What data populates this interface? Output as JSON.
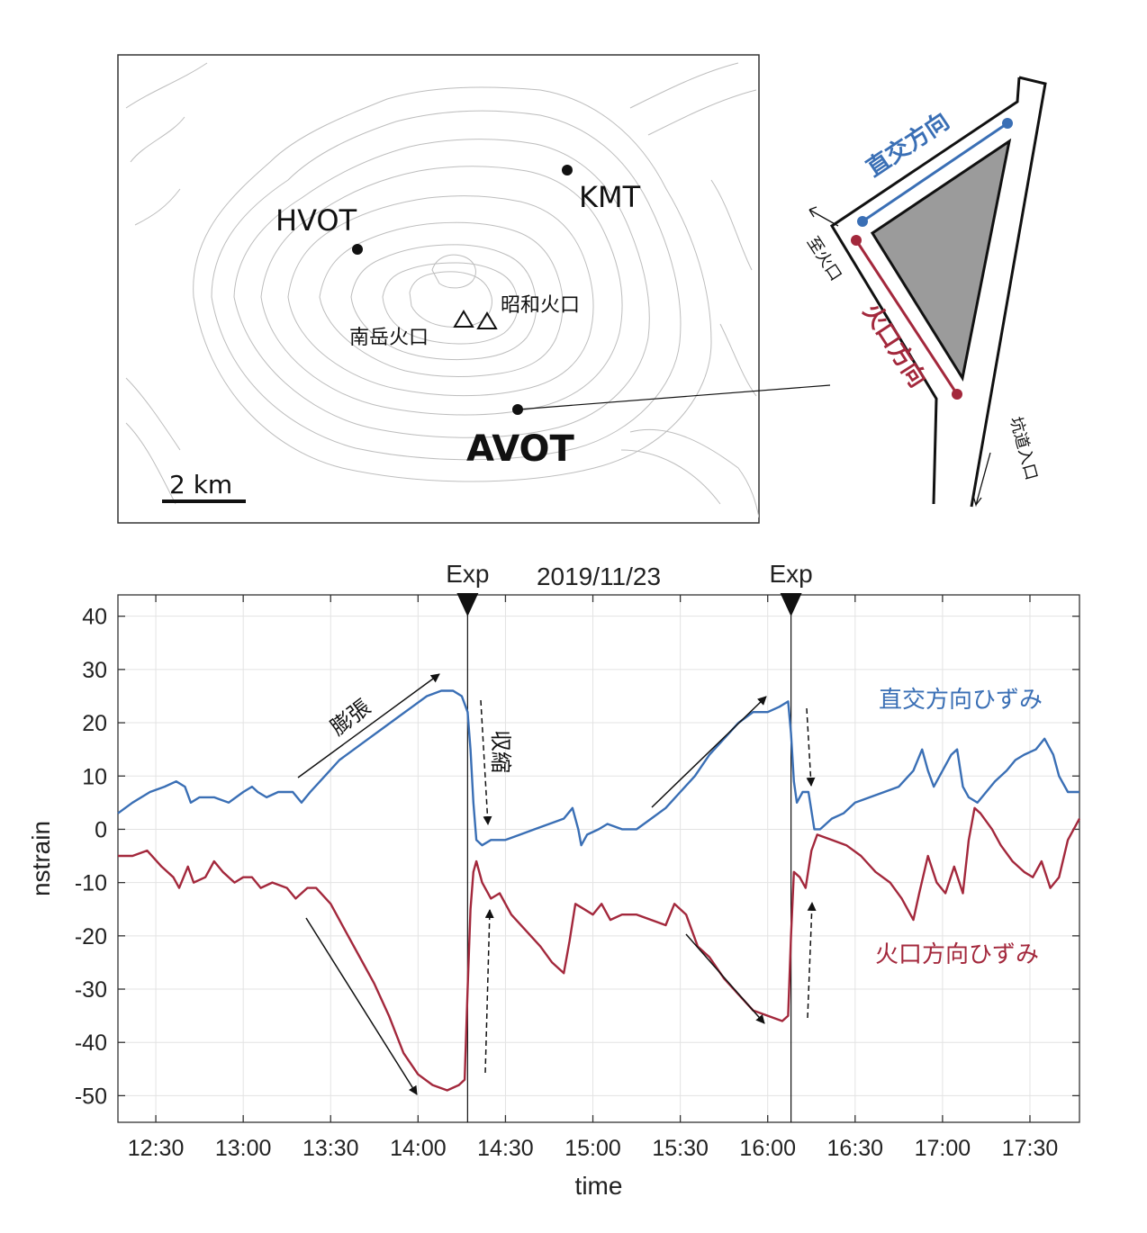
{
  "map": {
    "stations": [
      {
        "name": "HVOT",
        "label": "HVOT",
        "bold": false
      },
      {
        "name": "KMT",
        "label": "KMT",
        "bold": false
      },
      {
        "name": "AVOT",
        "label": "AVOT",
        "bold": true
      }
    ],
    "craters": [
      {
        "name": "minamidake",
        "label": "南岳火口"
      },
      {
        "name": "showa",
        "label": "昭和火口"
      }
    ],
    "scale_label": "2 km"
  },
  "inset": {
    "perpendicular_label": "直交方向",
    "crater_dir_label": "火口方向",
    "to_crater_label": "至火口",
    "tunnel_entrance_label": "坑道入口",
    "colors": {
      "blue": "#3a6fb5",
      "red": "#a3283c",
      "fill": "#9b9b9b"
    }
  },
  "chart_data": {
    "type": "line",
    "title": "2019/11/23",
    "xlabel": "time",
    "ylabel": "nstrain",
    "x_ticks": [
      "12:30",
      "13:00",
      "13:30",
      "14:00",
      "14:30",
      "15:00",
      "15:30",
      "16:00",
      "16:30",
      "17:00",
      "17:30"
    ],
    "y_ticks": [
      40,
      30,
      20,
      10,
      0,
      -10,
      -20,
      -30,
      -40,
      -50
    ],
    "xlim": [
      "12:17",
      "17:47"
    ],
    "ylim": [
      -55,
      44
    ],
    "grid": true,
    "events": [
      {
        "label": "Exp",
        "time": "14:17"
      },
      {
        "label": "Exp",
        "time": "16:08"
      }
    ],
    "annotations": [
      {
        "text": "膨張"
      },
      {
        "text": "収縮"
      }
    ],
    "series": [
      {
        "name": "直交方向ひずみ",
        "color": "#3a6fb5",
        "points": [
          [
            "12:17",
            3
          ],
          [
            "12:22",
            5
          ],
          [
            "12:28",
            7
          ],
          [
            "12:33",
            8
          ],
          [
            "12:37",
            9
          ],
          [
            "12:40",
            8
          ],
          [
            "12:42",
            5
          ],
          [
            "12:45",
            6
          ],
          [
            "12:50",
            6
          ],
          [
            "12:55",
            5
          ],
          [
            "13:00",
            7
          ],
          [
            "13:03",
            8
          ],
          [
            "13:05",
            7
          ],
          [
            "13:08",
            6
          ],
          [
            "13:12",
            7
          ],
          [
            "13:17",
            7
          ],
          [
            "13:20",
            5
          ],
          [
            "13:23",
            7
          ],
          [
            "13:28",
            10
          ],
          [
            "13:33",
            13
          ],
          [
            "13:38",
            15
          ],
          [
            "13:43",
            17
          ],
          [
            "13:48",
            19
          ],
          [
            "13:53",
            21
          ],
          [
            "13:58",
            23
          ],
          [
            "14:03",
            25
          ],
          [
            "14:08",
            26
          ],
          [
            "14:12",
            26
          ],
          [
            "14:15",
            25
          ],
          [
            "14:17",
            22
          ],
          [
            "14:18",
            15
          ],
          [
            "14:19",
            5
          ],
          [
            "14:20",
            -2
          ],
          [
            "14:22",
            -3
          ],
          [
            "14:25",
            -2
          ],
          [
            "14:30",
            -2
          ],
          [
            "14:35",
            -1
          ],
          [
            "14:40",
            0
          ],
          [
            "14:45",
            1
          ],
          [
            "14:50",
            2
          ],
          [
            "14:53",
            4
          ],
          [
            "14:55",
            0
          ],
          [
            "14:56",
            -3
          ],
          [
            "14:58",
            -1
          ],
          [
            "15:02",
            0
          ],
          [
            "15:05",
            1
          ],
          [
            "15:10",
            0
          ],
          [
            "15:15",
            0
          ],
          [
            "15:20",
            2
          ],
          [
            "15:25",
            4
          ],
          [
            "15:30",
            7
          ],
          [
            "15:35",
            10
          ],
          [
            "15:40",
            14
          ],
          [
            "15:45",
            17
          ],
          [
            "15:50",
            20
          ],
          [
            "15:55",
            22
          ],
          [
            "16:00",
            22
          ],
          [
            "16:04",
            23
          ],
          [
            "16:07",
            24
          ],
          [
            "16:08",
            18
          ],
          [
            "16:09",
            9
          ],
          [
            "16:10",
            5
          ],
          [
            "16:12",
            7
          ],
          [
            "16:14",
            7
          ],
          [
            "16:16",
            0
          ],
          [
            "16:18",
            0
          ],
          [
            "16:22",
            2
          ],
          [
            "16:26",
            3
          ],
          [
            "16:30",
            5
          ],
          [
            "16:35",
            6
          ],
          [
            "16:40",
            7
          ],
          [
            "16:45",
            8
          ],
          [
            "16:50",
            11
          ],
          [
            "16:53",
            15
          ],
          [
            "16:55",
            11
          ],
          [
            "16:57",
            8
          ],
          [
            "17:00",
            11
          ],
          [
            "17:03",
            14
          ],
          [
            "17:05",
            15
          ],
          [
            "17:07",
            8
          ],
          [
            "17:09",
            6
          ],
          [
            "17:12",
            5
          ],
          [
            "17:15",
            7
          ],
          [
            "17:18",
            9
          ],
          [
            "17:22",
            11
          ],
          [
            "17:25",
            13
          ],
          [
            "17:28",
            14
          ],
          [
            "17:32",
            15
          ],
          [
            "17:35",
            17
          ],
          [
            "17:38",
            14
          ],
          [
            "17:40",
            10
          ],
          [
            "17:43",
            7
          ],
          [
            "17:47",
            7
          ]
        ]
      },
      {
        "name": "火口方向ひずみ",
        "color": "#a3283c",
        "points": [
          [
            "12:17",
            -5
          ],
          [
            "12:22",
            -5
          ],
          [
            "12:27",
            -4
          ],
          [
            "12:32",
            -7
          ],
          [
            "12:36",
            -9
          ],
          [
            "12:38",
            -11
          ],
          [
            "12:41",
            -7
          ],
          [
            "12:43",
            -10
          ],
          [
            "12:47",
            -9
          ],
          [
            "12:50",
            -6
          ],
          [
            "12:53",
            -8
          ],
          [
            "12:57",
            -10
          ],
          [
            "13:00",
            -9
          ],
          [
            "13:03",
            -9
          ],
          [
            "13:06",
            -11
          ],
          [
            "13:10",
            -10
          ],
          [
            "13:15",
            -11
          ],
          [
            "13:18",
            -13
          ],
          [
            "13:22",
            -11
          ],
          [
            "13:25",
            -11
          ],
          [
            "13:30",
            -14
          ],
          [
            "13:35",
            -19
          ],
          [
            "13:40",
            -24
          ],
          [
            "13:45",
            -29
          ],
          [
            "13:50",
            -35
          ],
          [
            "13:55",
            -42
          ],
          [
            "14:00",
            -46
          ],
          [
            "14:05",
            -48
          ],
          [
            "14:10",
            -49
          ],
          [
            "14:14",
            -48
          ],
          [
            "14:16",
            -47
          ],
          [
            "14:17",
            -30
          ],
          [
            "14:18",
            -15
          ],
          [
            "14:19",
            -8
          ],
          [
            "14:20",
            -6
          ],
          [
            "14:22",
            -10
          ],
          [
            "14:25",
            -13
          ],
          [
            "14:28",
            -12
          ],
          [
            "14:32",
            -16
          ],
          [
            "14:37",
            -19
          ],
          [
            "14:42",
            -22
          ],
          [
            "14:46",
            -25
          ],
          [
            "14:50",
            -27
          ],
          [
            "14:52",
            -21
          ],
          [
            "14:54",
            -14
          ],
          [
            "14:57",
            -15
          ],
          [
            "15:00",
            -16
          ],
          [
            "15:03",
            -14
          ],
          [
            "15:06",
            -17
          ],
          [
            "15:10",
            -16
          ],
          [
            "15:15",
            -16
          ],
          [
            "15:20",
            -17
          ],
          [
            "15:25",
            -18
          ],
          [
            "15:28",
            -14
          ],
          [
            "15:32",
            -16
          ],
          [
            "15:36",
            -22
          ],
          [
            "15:40",
            -24
          ],
          [
            "15:45",
            -28
          ],
          [
            "15:50",
            -31
          ],
          [
            "15:55",
            -34
          ],
          [
            "16:00",
            -35
          ],
          [
            "16:05",
            -36
          ],
          [
            "16:07",
            -35
          ],
          [
            "16:08",
            -20
          ],
          [
            "16:09",
            -8
          ],
          [
            "16:11",
            -9
          ],
          [
            "16:13",
            -11
          ],
          [
            "16:15",
            -4
          ],
          [
            "16:17",
            -1
          ],
          [
            "16:22",
            -2
          ],
          [
            "16:27",
            -3
          ],
          [
            "16:32",
            -5
          ],
          [
            "16:37",
            -8
          ],
          [
            "16:42",
            -10
          ],
          [
            "16:46",
            -13
          ],
          [
            "16:50",
            -17
          ],
          [
            "16:52",
            -12
          ],
          [
            "16:55",
            -5
          ],
          [
            "16:58",
            -10
          ],
          [
            "17:01",
            -12
          ],
          [
            "17:04",
            -7
          ],
          [
            "17:07",
            -12
          ],
          [
            "17:09",
            -2
          ],
          [
            "17:11",
            4
          ],
          [
            "17:13",
            3
          ],
          [
            "17:17",
            0
          ],
          [
            "17:20",
            -3
          ],
          [
            "17:24",
            -6
          ],
          [
            "17:28",
            -8
          ],
          [
            "17:31",
            -9
          ],
          [
            "17:34",
            -6
          ],
          [
            "17:37",
            -11
          ],
          [
            "17:40",
            -9
          ],
          [
            "17:43",
            -2
          ],
          [
            "17:47",
            2
          ]
        ]
      }
    ]
  }
}
